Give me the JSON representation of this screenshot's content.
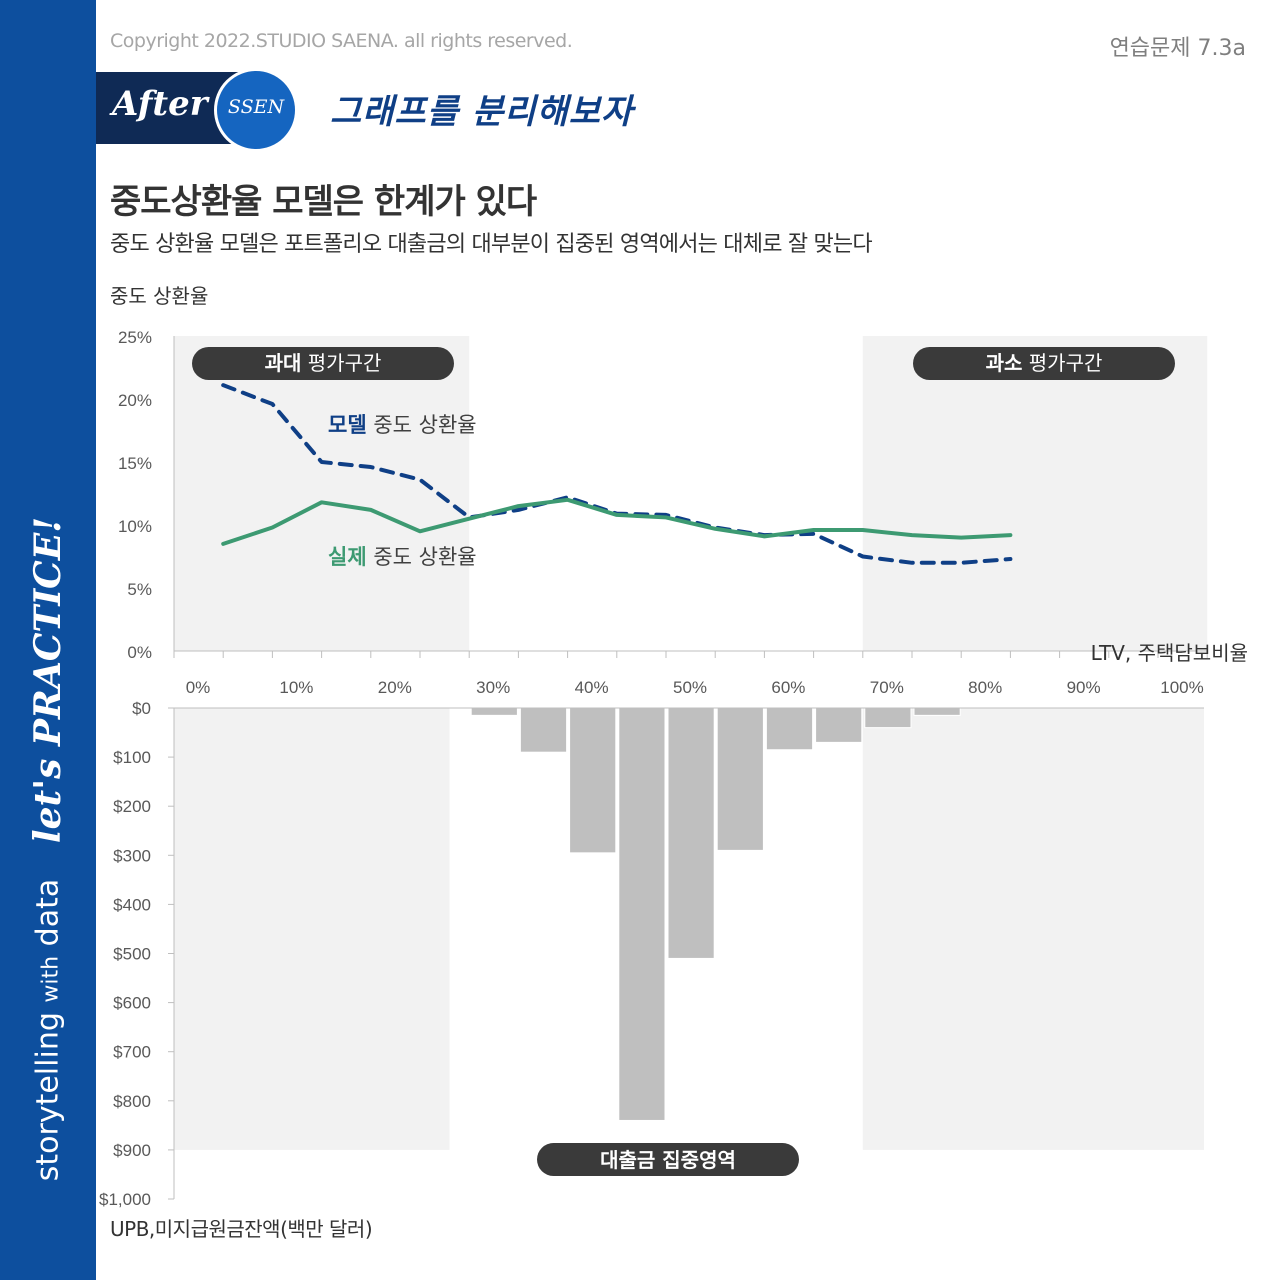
{
  "header": {
    "copyright": "Copyright 2022.STUDIO SAENA. all rights reserved.",
    "exercise": "연습문제 7.3a",
    "after_label": "After",
    "ssen_label": "SSEN",
    "hand_title": "그래프를 분리해보자",
    "title": "중도상환율 모델은 한계가 있다",
    "subtitle": "중도 상환율 모델은 포트폴리오 대출금의 대부분이 집중된 영역에서는 대체로 잘 맞는다"
  },
  "sidebar": {
    "brand": "storytelling",
    "brand_with": "with",
    "brand_data": "data",
    "practice": "let's PRACTICE!"
  },
  "colors": {
    "sidebar": "#0d4f9e",
    "model": "#0f3f86",
    "actual": "#3d9a72",
    "bars": "#bfbfbf",
    "shade": "#f2f2f2",
    "pill": "#3a3a3a"
  },
  "chart_data": [
    {
      "type": "line",
      "ylabel": "중도 상환율",
      "xlabel": "LTV, 주택담보비율",
      "x_ticks": [
        "0%",
        "10%",
        "20%",
        "30%",
        "40%",
        "50%",
        "60%",
        "70%",
        "80%",
        "90%",
        "100%"
      ],
      "y_ticks": [
        "0%",
        "5%",
        "10%",
        "15%",
        "20%",
        "25%"
      ],
      "xlim": [
        0,
        100
      ],
      "ylim": [
        0,
        25
      ],
      "x": [
        5,
        10,
        15,
        20,
        25,
        30,
        35,
        40,
        45,
        50,
        55,
        60,
        65,
        70,
        75,
        80,
        85
      ],
      "series": [
        {
          "name": "모델 중도 상환율",
          "name_bold": "모델",
          "name_rest": " 중도 상환율",
          "style": "dashed",
          "values": [
            21.1,
            19.6,
            15.0,
            14.6,
            13.6,
            10.6,
            11.2,
            12.2,
            10.9,
            10.8,
            9.8,
            9.2,
            9.3,
            7.5,
            7.0,
            7.0,
            7.3
          ]
        },
        {
          "name": "실제 중도 상환율",
          "name_bold": "실제",
          "name_rest": " 중도 상환율",
          "style": "solid",
          "values": [
            8.5,
            9.8,
            11.8,
            11.2,
            9.5,
            10.5,
            11.5,
            12.0,
            10.8,
            10.6,
            9.7,
            9.1,
            9.6,
            9.6,
            9.2,
            9.0,
            9.2
          ]
        }
      ],
      "annotations": [
        {
          "bold": "과대",
          "rest": " 평가구간",
          "range": [
            0,
            30
          ]
        },
        {
          "bold": "과소",
          "rest": " 평가구간",
          "range": [
            70,
            105
          ]
        }
      ]
    },
    {
      "type": "bar",
      "orientation": "downward",
      "ylabel": "UPB,미지급원금잔액(백만 달러)",
      "y_ticks": [
        "$0",
        "$100",
        "$200",
        "$300",
        "$400",
        "$500",
        "$600",
        "$700",
        "$800",
        "$900",
        "$1,000"
      ],
      "ylim": [
        0,
        1000
      ],
      "bin_width": 5,
      "bin_starts": [
        0,
        5,
        10,
        15,
        20,
        25,
        30,
        35,
        40,
        45,
        50,
        55,
        60,
        65,
        70,
        75,
        80,
        85,
        90,
        95,
        100
      ],
      "values": [
        0,
        0,
        0,
        0,
        0,
        0,
        15,
        90,
        295,
        840,
        510,
        290,
        85,
        70,
        40,
        15,
        0,
        0,
        0,
        0,
        0
      ],
      "annotation": "대출금 집중영역",
      "shaded_ranges": [
        [
          0,
          28
        ],
        [
          70,
          105
        ]
      ]
    }
  ]
}
